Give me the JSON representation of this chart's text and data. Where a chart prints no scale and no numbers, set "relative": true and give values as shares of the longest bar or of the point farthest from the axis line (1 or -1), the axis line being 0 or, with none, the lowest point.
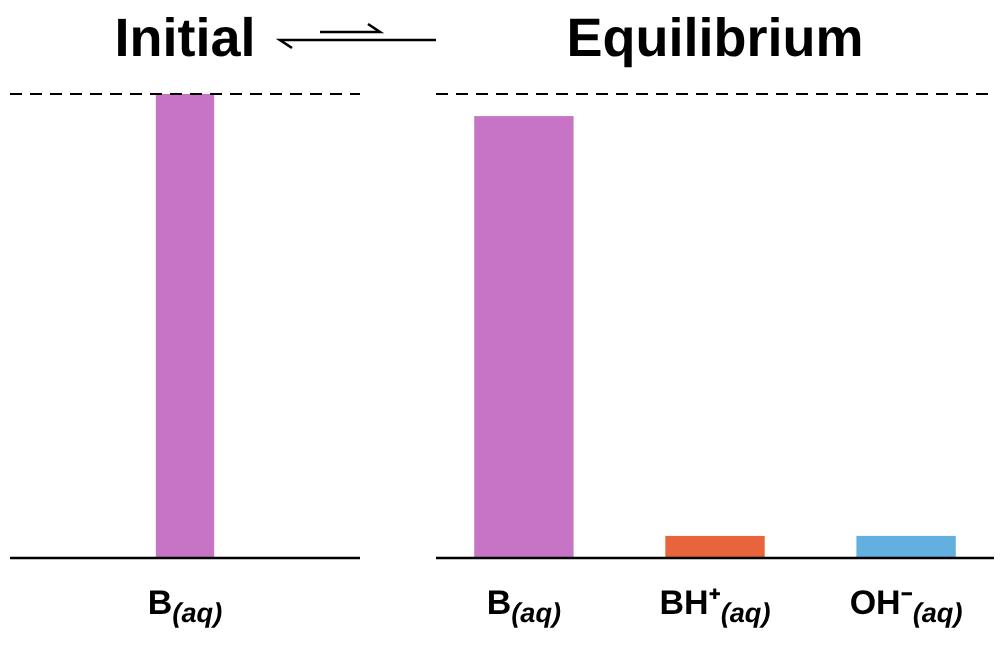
{
  "chart_data": [
    {
      "type": "bar",
      "title": "Initial",
      "categories": [
        "B$_{(aq)}$"
      ],
      "relative": true,
      "colors": [
        "#c774c6"
      ],
      "values": [
        1
      ],
      "ref_lines": [
        {
          "axis": "y",
          "value": 1,
          "line_style": "dashed"
        }
      ]
    },
    {
      "type": "bar",
      "title": "Equilibrium",
      "categories": [
        "B$_{(aq)}$",
        "BH⁺$_{(aq)}$",
        "OH⁻$_{(aq)}$"
      ],
      "relative": true,
      "colors": [
        "#c774c6",
        "#e8643c",
        "#63afe0"
      ],
      "values": [
        1,
        0.05,
        0.05
      ],
      "ref_lines": [
        {
          "axis": "y",
          "value": 1.05,
          "line_style": "dashed"
        }
      ]
    }
  ]
}
